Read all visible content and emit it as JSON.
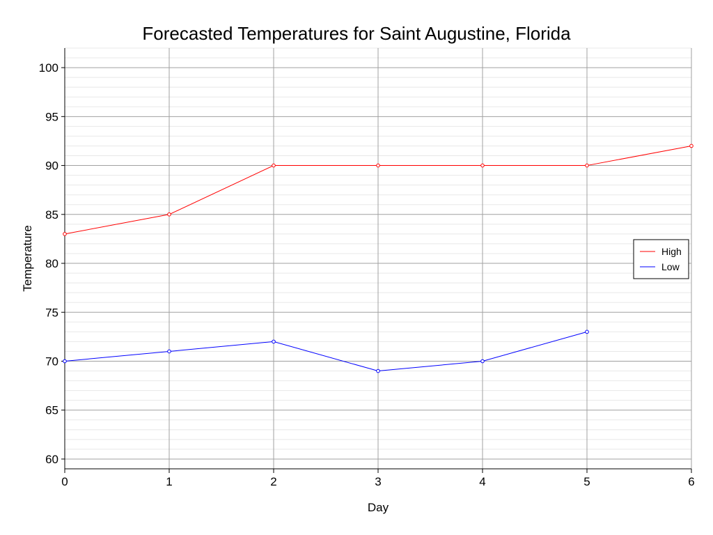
{
  "chart_data": {
    "type": "line",
    "title": "Forecasted Temperatures for Saint Augustine, Florida",
    "xlabel": "Day",
    "ylabel": "Temperature",
    "xlim": [
      0,
      6
    ],
    "ylim": [
      59,
      102
    ],
    "x_ticks": [
      0,
      1,
      2,
      3,
      4,
      5,
      6
    ],
    "y_ticks": [
      60,
      65,
      70,
      75,
      80,
      85,
      90,
      95,
      100
    ],
    "y_minor_step": 1,
    "grid": true,
    "legend_position": "right",
    "series": [
      {
        "name": "High",
        "color": "#ff0000",
        "x": [
          0,
          1,
          2,
          3,
          4,
          5,
          6
        ],
        "y": [
          83,
          85,
          90,
          90,
          90,
          90,
          92
        ]
      },
      {
        "name": "Low",
        "color": "#0000ff",
        "x": [
          0,
          1,
          2,
          3,
          4,
          5
        ],
        "y": [
          70,
          71,
          72,
          69,
          70,
          73
        ]
      }
    ]
  }
}
